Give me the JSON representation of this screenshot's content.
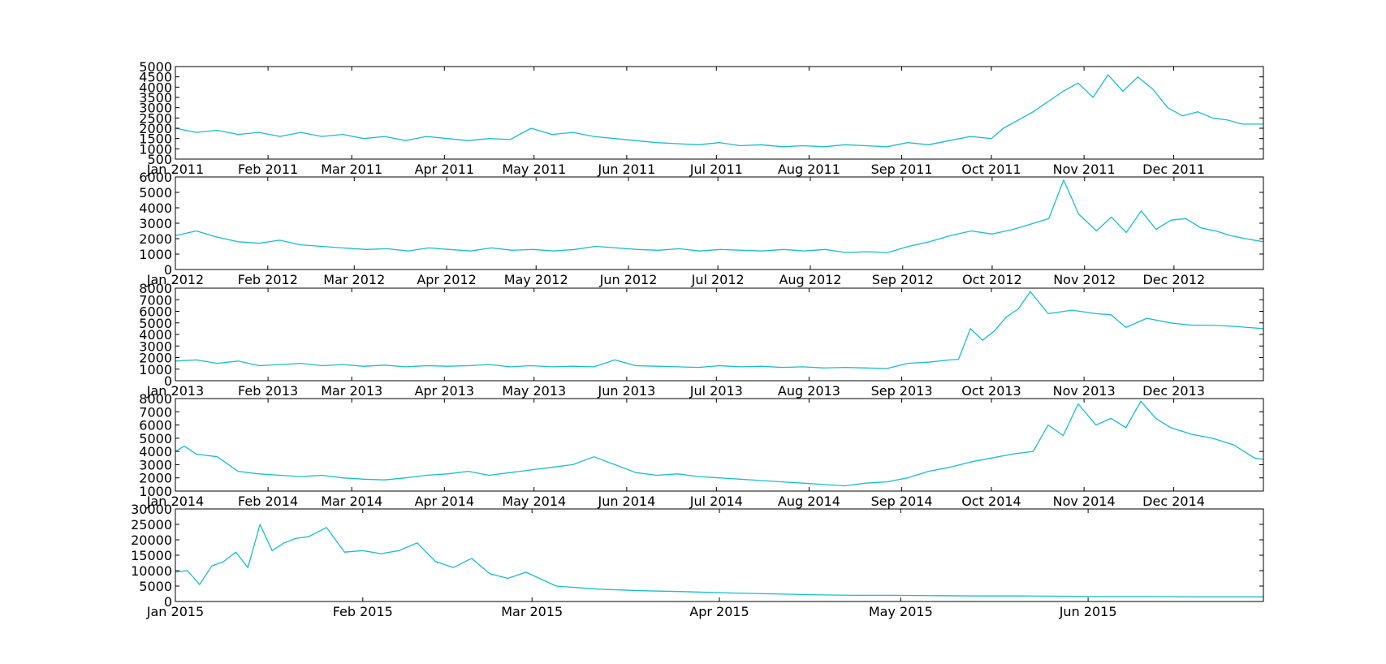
{
  "line_color": "#17becf",
  "chart_data": [
    {
      "type": "line",
      "title": "",
      "xlabel": "",
      "ylabel": "",
      "xlim": [
        "2011-01-01",
        "2011-12-31"
      ],
      "ylim": [
        500,
        5000
      ],
      "yticks": [
        500,
        1000,
        1500,
        2000,
        2500,
        3000,
        3500,
        4000,
        4500,
        5000
      ],
      "xticks": [
        {
          "date": "2011-01-01",
          "label": "Jan 2011"
        },
        {
          "date": "2011-02-01",
          "label": "Feb 2011"
        },
        {
          "date": "2011-03-01",
          "label": "Mar 2011"
        },
        {
          "date": "2011-04-01",
          "label": "Apr 2011"
        },
        {
          "date": "2011-05-01",
          "label": "May 2011"
        },
        {
          "date": "2011-06-01",
          "label": "Jun 2011"
        },
        {
          "date": "2011-07-01",
          "label": "Jul 2011"
        },
        {
          "date": "2011-08-01",
          "label": "Aug 2011"
        },
        {
          "date": "2011-09-01",
          "label": "Sep 2011"
        },
        {
          "date": "2011-10-01",
          "label": "Oct 2011"
        },
        {
          "date": "2011-11-01",
          "label": "Nov 2011"
        },
        {
          "date": "2011-12-01",
          "label": "Dec 2011"
        }
      ],
      "series": [
        {
          "x": [
            "2011-01-01",
            "2011-01-08",
            "2011-01-15",
            "2011-01-22",
            "2011-01-29",
            "2011-02-05",
            "2011-02-12",
            "2011-02-19",
            "2011-02-26",
            "2011-03-05",
            "2011-03-12",
            "2011-03-19",
            "2011-03-26",
            "2011-04-02",
            "2011-04-09",
            "2011-04-16",
            "2011-04-23",
            "2011-04-30",
            "2011-05-07",
            "2011-05-14",
            "2011-05-21",
            "2011-05-28",
            "2011-06-04",
            "2011-06-11",
            "2011-06-18",
            "2011-06-25",
            "2011-07-02",
            "2011-07-09",
            "2011-07-16",
            "2011-07-23",
            "2011-07-30",
            "2011-08-06",
            "2011-08-13",
            "2011-08-20",
            "2011-08-27",
            "2011-09-03",
            "2011-09-10",
            "2011-09-17",
            "2011-09-24",
            "2011-10-01",
            "2011-10-05",
            "2011-10-10",
            "2011-10-15",
            "2011-10-20",
            "2011-10-25",
            "2011-10-30",
            "2011-11-04",
            "2011-11-09",
            "2011-11-14",
            "2011-11-19",
            "2011-11-24",
            "2011-11-29",
            "2011-12-04",
            "2011-12-09",
            "2011-12-14",
            "2011-12-19",
            "2011-12-24",
            "2011-12-31"
          ],
          "y": [
            2000,
            1800,
            1900,
            1700,
            1800,
            1600,
            1800,
            1600,
            1700,
            1500,
            1600,
            1400,
            1600,
            1500,
            1400,
            1500,
            1450,
            2000,
            1700,
            1800,
            1600,
            1500,
            1400,
            1300,
            1250,
            1200,
            1300,
            1150,
            1200,
            1100,
            1150,
            1100,
            1200,
            1150,
            1100,
            1300,
            1200,
            1400,
            1600,
            1500,
            2000,
            2400,
            2800,
            3300,
            3800,
            4200,
            3500,
            4600,
            3800,
            4500,
            3900,
            3000,
            2600,
            2800,
            2500,
            2400,
            2200,
            2200
          ]
        }
      ]
    },
    {
      "type": "line",
      "title": "",
      "xlabel": "",
      "ylabel": "",
      "xlim": [
        "2012-01-01",
        "2012-12-31"
      ],
      "ylim": [
        0,
        6000
      ],
      "yticks": [
        0,
        1000,
        2000,
        3000,
        4000,
        5000,
        6000
      ],
      "xticks": [
        {
          "date": "2012-01-01",
          "label": "Jan 2012"
        },
        {
          "date": "2012-02-01",
          "label": "Feb 2012"
        },
        {
          "date": "2012-03-01",
          "label": "Mar 2012"
        },
        {
          "date": "2012-04-01",
          "label": "Apr 2012"
        },
        {
          "date": "2012-05-01",
          "label": "May 2012"
        },
        {
          "date": "2012-06-01",
          "label": "Jun 2012"
        },
        {
          "date": "2012-07-01",
          "label": "Jul 2012"
        },
        {
          "date": "2012-08-01",
          "label": "Aug 2012"
        },
        {
          "date": "2012-09-01",
          "label": "Sep 2012"
        },
        {
          "date": "2012-10-01",
          "label": "Oct 2012"
        },
        {
          "date": "2012-11-01",
          "label": "Nov 2012"
        },
        {
          "date": "2012-12-01",
          "label": "Dec 2012"
        }
      ],
      "series": [
        {
          "x": [
            "2012-01-01",
            "2012-01-08",
            "2012-01-15",
            "2012-01-22",
            "2012-01-29",
            "2012-02-05",
            "2012-02-12",
            "2012-02-19",
            "2012-02-26",
            "2012-03-05",
            "2012-03-12",
            "2012-03-19",
            "2012-03-26",
            "2012-04-02",
            "2012-04-09",
            "2012-04-16",
            "2012-04-23",
            "2012-04-30",
            "2012-05-07",
            "2012-05-14",
            "2012-05-21",
            "2012-05-28",
            "2012-06-04",
            "2012-06-11",
            "2012-06-18",
            "2012-06-25",
            "2012-07-02",
            "2012-07-09",
            "2012-07-16",
            "2012-07-23",
            "2012-07-30",
            "2012-08-06",
            "2012-08-13",
            "2012-08-20",
            "2012-08-27",
            "2012-09-03",
            "2012-09-10",
            "2012-09-17",
            "2012-09-24",
            "2012-10-01",
            "2012-10-08",
            "2012-10-15",
            "2012-10-20",
            "2012-10-25",
            "2012-10-30",
            "2012-11-05",
            "2012-11-10",
            "2012-11-15",
            "2012-11-20",
            "2012-11-25",
            "2012-11-30",
            "2012-12-05",
            "2012-12-10",
            "2012-12-15",
            "2012-12-20",
            "2012-12-25",
            "2012-12-31"
          ],
          "y": [
            2200,
            2500,
            2100,
            1800,
            1700,
            1900,
            1600,
            1500,
            1400,
            1300,
            1350,
            1200,
            1400,
            1300,
            1200,
            1400,
            1250,
            1300,
            1200,
            1300,
            1500,
            1400,
            1300,
            1250,
            1350,
            1200,
            1300,
            1250,
            1200,
            1300,
            1200,
            1300,
            1100,
            1150,
            1100,
            1500,
            1800,
            2200,
            2500,
            2300,
            2600,
            3000,
            3300,
            5800,
            3600,
            2500,
            3400,
            2400,
            3800,
            2600,
            3200,
            3300,
            2700,
            2500,
            2200,
            2000,
            1800
          ]
        }
      ]
    },
    {
      "type": "line",
      "title": "",
      "xlabel": "",
      "ylabel": "",
      "xlim": [
        "2013-01-01",
        "2013-12-31"
      ],
      "ylim": [
        0,
        8000
      ],
      "yticks": [
        0,
        1000,
        2000,
        3000,
        4000,
        5000,
        6000,
        7000,
        8000
      ],
      "xticks": [
        {
          "date": "2013-01-01",
          "label": "Jan 2013"
        },
        {
          "date": "2013-02-01",
          "label": "Feb 2013"
        },
        {
          "date": "2013-03-01",
          "label": "Mar 2013"
        },
        {
          "date": "2013-04-01",
          "label": "Apr 2013"
        },
        {
          "date": "2013-05-01",
          "label": "May 2013"
        },
        {
          "date": "2013-06-01",
          "label": "Jun 2013"
        },
        {
          "date": "2013-07-01",
          "label": "Jul 2013"
        },
        {
          "date": "2013-08-01",
          "label": "Aug 2013"
        },
        {
          "date": "2013-09-01",
          "label": "Sep 2013"
        },
        {
          "date": "2013-10-01",
          "label": "Oct 2013"
        },
        {
          "date": "2013-11-01",
          "label": "Nov 2013"
        },
        {
          "date": "2013-12-01",
          "label": "Dec 2013"
        }
      ],
      "series": [
        {
          "x": [
            "2013-01-01",
            "2013-01-08",
            "2013-01-15",
            "2013-01-22",
            "2013-01-29",
            "2013-02-05",
            "2013-02-12",
            "2013-02-19",
            "2013-02-26",
            "2013-03-05",
            "2013-03-12",
            "2013-03-19",
            "2013-03-26",
            "2013-04-02",
            "2013-04-09",
            "2013-04-16",
            "2013-04-23",
            "2013-04-30",
            "2013-05-07",
            "2013-05-14",
            "2013-05-21",
            "2013-05-28",
            "2013-06-04",
            "2013-06-11",
            "2013-06-18",
            "2013-06-25",
            "2013-07-02",
            "2013-07-09",
            "2013-07-16",
            "2013-07-23",
            "2013-07-30",
            "2013-08-06",
            "2013-08-13",
            "2013-08-20",
            "2013-08-27",
            "2013-09-03",
            "2013-09-10",
            "2013-09-17",
            "2013-09-20",
            "2013-09-24",
            "2013-09-28",
            "2013-10-02",
            "2013-10-06",
            "2013-10-10",
            "2013-10-14",
            "2013-10-20",
            "2013-10-28",
            "2013-11-05",
            "2013-11-10",
            "2013-11-15",
            "2013-11-22",
            "2013-11-30",
            "2013-12-07",
            "2013-12-14",
            "2013-12-21",
            "2013-12-31"
          ],
          "y": [
            1700,
            1800,
            1500,
            1700,
            1300,
            1400,
            1500,
            1300,
            1400,
            1250,
            1350,
            1200,
            1300,
            1250,
            1300,
            1400,
            1200,
            1300,
            1200,
            1250,
            1200,
            1800,
            1300,
            1250,
            1200,
            1150,
            1300,
            1200,
            1250,
            1150,
            1200,
            1100,
            1150,
            1100,
            1050,
            1500,
            1600,
            1800,
            1850,
            4500,
            3500,
            4300,
            5500,
            6200,
            7700,
            5800,
            6100,
            5800,
            5700,
            4600,
            5400,
            5000,
            4800,
            4800,
            4700,
            4500
          ]
        }
      ]
    },
    {
      "type": "line",
      "title": "",
      "xlabel": "",
      "ylabel": "",
      "xlim": [
        "2014-01-01",
        "2014-12-31"
      ],
      "ylim": [
        1000,
        8000
      ],
      "yticks": [
        1000,
        2000,
        3000,
        4000,
        5000,
        6000,
        7000,
        8000
      ],
      "xticks": [
        {
          "date": "2014-01-01",
          "label": "Jan 2014"
        },
        {
          "date": "2014-02-01",
          "label": "Feb 2014"
        },
        {
          "date": "2014-03-01",
          "label": "Mar 2014"
        },
        {
          "date": "2014-04-01",
          "label": "Apr 2014"
        },
        {
          "date": "2014-05-01",
          "label": "May 2014"
        },
        {
          "date": "2014-06-01",
          "label": "Jun 2014"
        },
        {
          "date": "2014-07-01",
          "label": "Jul 2014"
        },
        {
          "date": "2014-08-01",
          "label": "Aug 2014"
        },
        {
          "date": "2014-09-01",
          "label": "Sep 2014"
        },
        {
          "date": "2014-10-01",
          "label": "Oct 2014"
        },
        {
          "date": "2014-11-01",
          "label": "Nov 2014"
        },
        {
          "date": "2014-12-01",
          "label": "Dec 2014"
        }
      ],
      "series": [
        {
          "x": [
            "2014-01-01",
            "2014-01-04",
            "2014-01-08",
            "2014-01-15",
            "2014-01-22",
            "2014-01-29",
            "2014-02-05",
            "2014-02-12",
            "2014-02-19",
            "2014-02-26",
            "2014-03-05",
            "2014-03-12",
            "2014-03-19",
            "2014-03-26",
            "2014-04-02",
            "2014-04-09",
            "2014-04-16",
            "2014-04-23",
            "2014-04-30",
            "2014-05-07",
            "2014-05-14",
            "2014-05-21",
            "2014-05-28",
            "2014-06-04",
            "2014-06-11",
            "2014-06-18",
            "2014-06-25",
            "2014-07-02",
            "2014-07-09",
            "2014-07-16",
            "2014-07-23",
            "2014-07-30",
            "2014-08-06",
            "2014-08-13",
            "2014-08-20",
            "2014-08-27",
            "2014-09-03",
            "2014-09-10",
            "2014-09-17",
            "2014-09-24",
            "2014-10-01",
            "2014-10-08",
            "2014-10-15",
            "2014-10-20",
            "2014-10-25",
            "2014-10-30",
            "2014-11-05",
            "2014-11-10",
            "2014-11-15",
            "2014-11-20",
            "2014-11-25",
            "2014-11-30",
            "2014-12-07",
            "2014-12-14",
            "2014-12-21",
            "2014-12-28",
            "2014-12-31"
          ],
          "y": [
            4000,
            4400,
            3800,
            3600,
            2500,
            2300,
            2200,
            2100,
            2200,
            2000,
            1900,
            1850,
            2000,
            2200,
            2300,
            2500,
            2200,
            2400,
            2600,
            2800,
            3000,
            3600,
            3000,
            2400,
            2200,
            2300,
            2100,
            2000,
            1900,
            1800,
            1700,
            1600,
            1500,
            1400,
            1600,
            1700,
            2000,
            2500,
            2800,
            3200,
            3500,
            3800,
            4000,
            6000,
            5200,
            7600,
            6000,
            6500,
            5800,
            7800,
            6500,
            5800,
            5300,
            5000,
            4500,
            3500,
            3400
          ]
        }
      ]
    },
    {
      "type": "line",
      "title": "",
      "xlabel": "",
      "ylabel": "",
      "xlim": [
        "2015-01-01",
        "2015-06-30"
      ],
      "ylim": [
        0,
        30000
      ],
      "yticks": [
        0,
        5000,
        10000,
        15000,
        20000,
        25000,
        30000
      ],
      "xticks": [
        {
          "date": "2015-01-01",
          "label": "Jan 2015"
        },
        {
          "date": "2015-02-01",
          "label": "Feb 2015"
        },
        {
          "date": "2015-03-01",
          "label": "Mar 2015"
        },
        {
          "date": "2015-04-01",
          "label": "Apr 2015"
        },
        {
          "date": "2015-05-01",
          "label": "May 2015"
        },
        {
          "date": "2015-06-01",
          "label": "Jun 2015"
        }
      ],
      "series": [
        {
          "x": [
            "2015-01-01",
            "2015-01-03",
            "2015-01-05",
            "2015-01-07",
            "2015-01-09",
            "2015-01-11",
            "2015-01-13",
            "2015-01-15",
            "2015-01-17",
            "2015-01-19",
            "2015-01-21",
            "2015-01-23",
            "2015-01-26",
            "2015-01-29",
            "2015-02-01",
            "2015-02-04",
            "2015-02-07",
            "2015-02-10",
            "2015-02-13",
            "2015-02-16",
            "2015-02-19",
            "2015-02-22",
            "2015-02-25",
            "2015-02-28",
            "2015-03-05",
            "2015-03-12",
            "2015-03-19",
            "2015-03-26",
            "2015-04-02",
            "2015-04-09",
            "2015-04-16",
            "2015-04-23",
            "2015-04-30",
            "2015-05-07",
            "2015-05-14",
            "2015-05-21",
            "2015-05-28",
            "2015-06-04",
            "2015-06-11",
            "2015-06-18",
            "2015-06-25",
            "2015-06-30"
          ],
          "y": [
            9500,
            10000,
            5500,
            11500,
            13000,
            16000,
            11000,
            25000,
            16500,
            19000,
            20500,
            21000,
            24000,
            16000,
            16500,
            15500,
            16500,
            19000,
            13000,
            11000,
            14000,
            9000,
            7500,
            9500,
            5000,
            4000,
            3500,
            3200,
            2800,
            2500,
            2200,
            2000,
            2000,
            1900,
            1800,
            1800,
            1700,
            1600,
            1600,
            1500,
            1500,
            1500
          ]
        }
      ]
    }
  ]
}
